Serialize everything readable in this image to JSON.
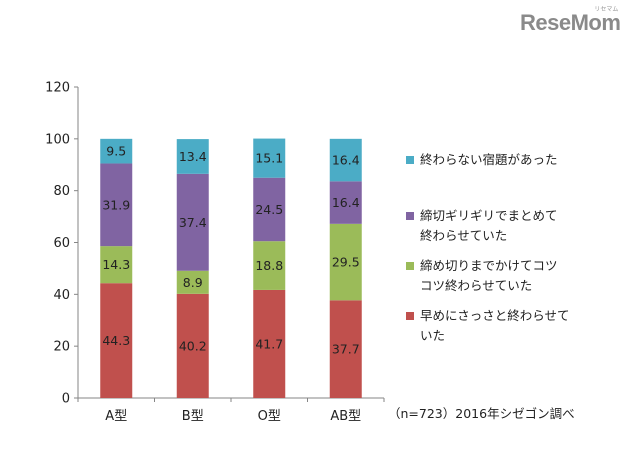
{
  "logo": {
    "text": "ReseMom",
    "sub": "リセマム"
  },
  "footnote": "（n=723）2016年シゼゴン調べ",
  "chart_data": {
    "type": "bar",
    "stacked": true,
    "categories": [
      "A型",
      "B型",
      "O型",
      "AB型"
    ],
    "series": [
      {
        "name": "早めにさっさと終わらせていた",
        "color": "#c0504d",
        "values": [
          44.3,
          40.2,
          41.7,
          37.7
        ]
      },
      {
        "name": "締め切りまでかけてコツコツ終わらせていた",
        "color": "#9bbb59",
        "values": [
          14.3,
          8.9,
          18.8,
          29.5
        ]
      },
      {
        "name": "締切ギリギリでまとめて終わらせていた",
        "color": "#8064a2",
        "values": [
          31.9,
          37.4,
          24.5,
          16.4
        ]
      },
      {
        "name": "終わらない宿題があった",
        "color": "#4bacc6",
        "values": [
          9.5,
          13.4,
          15.1,
          16.4
        ]
      }
    ],
    "ylim": [
      0,
      120
    ],
    "yticks": [
      0,
      20,
      40,
      60,
      80,
      100,
      120
    ],
    "grid": false,
    "legend_position": "right"
  },
  "legend": {
    "items": [
      {
        "color": "#4bacc6",
        "lines": [
          "終わらない宿題があった"
        ]
      },
      {
        "color": "#8064a2",
        "lines": [
          "締切ギリギリでまとめて",
          "終わらせていた"
        ]
      },
      {
        "color": "#9bbb59",
        "lines": [
          "締め切りまでかけてコツ",
          "コツ終わらせていた"
        ]
      },
      {
        "color": "#c0504d",
        "lines": [
          "早めにさっさと終わらせて",
          "いた"
        ]
      }
    ]
  }
}
